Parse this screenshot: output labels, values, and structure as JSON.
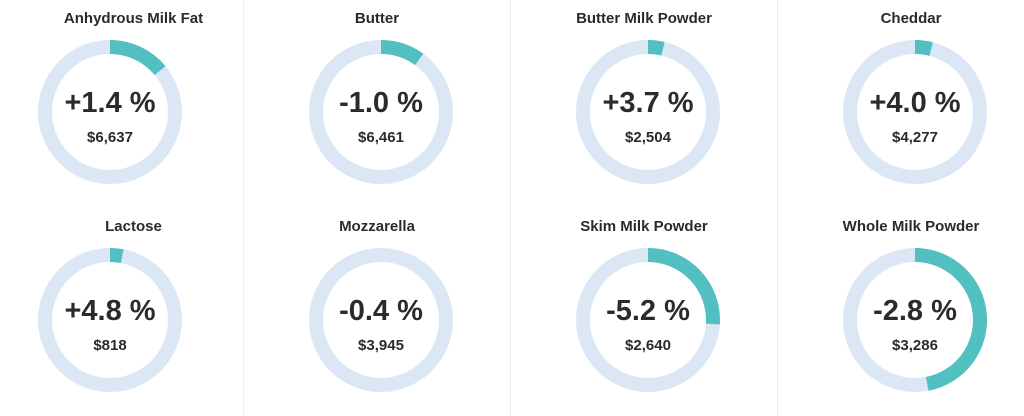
{
  "colors": {
    "track": "#dce7f5",
    "fill": "#52bfc0",
    "text": "#2b2b2b"
  },
  "chart_data": {
    "type": "donut",
    "items": [
      {
        "name": "Anhydrous Milk Fat",
        "change_label": "+1.4 %",
        "price_label": "$6,637",
        "ring_fraction": 0.14
      },
      {
        "name": "Butter",
        "change_label": "-1.0 %",
        "price_label": "$6,461",
        "ring_fraction": 0.1
      },
      {
        "name": "Butter Milk Powder",
        "change_label": "+3.7 %",
        "price_label": "$2,504",
        "ring_fraction": 0.037
      },
      {
        "name": "Cheddar",
        "change_label": "+4.0 %",
        "price_label": "$4,277",
        "ring_fraction": 0.04
      },
      {
        "name": "Lactose",
        "change_label": "+4.8 %",
        "price_label": "$818",
        "ring_fraction": 0.03
      },
      {
        "name": "Mozzarella",
        "change_label": "-0.4 %",
        "price_label": "$3,945",
        "ring_fraction": 0.0
      },
      {
        "name": "Skim Milk Powder",
        "change_label": "-5.2 %",
        "price_label": "$2,640",
        "ring_fraction": 0.26
      },
      {
        "name": "Whole Milk Powder",
        "change_label": "-2.8 %",
        "price_label": "$3,286",
        "ring_fraction": 0.47
      }
    ]
  }
}
